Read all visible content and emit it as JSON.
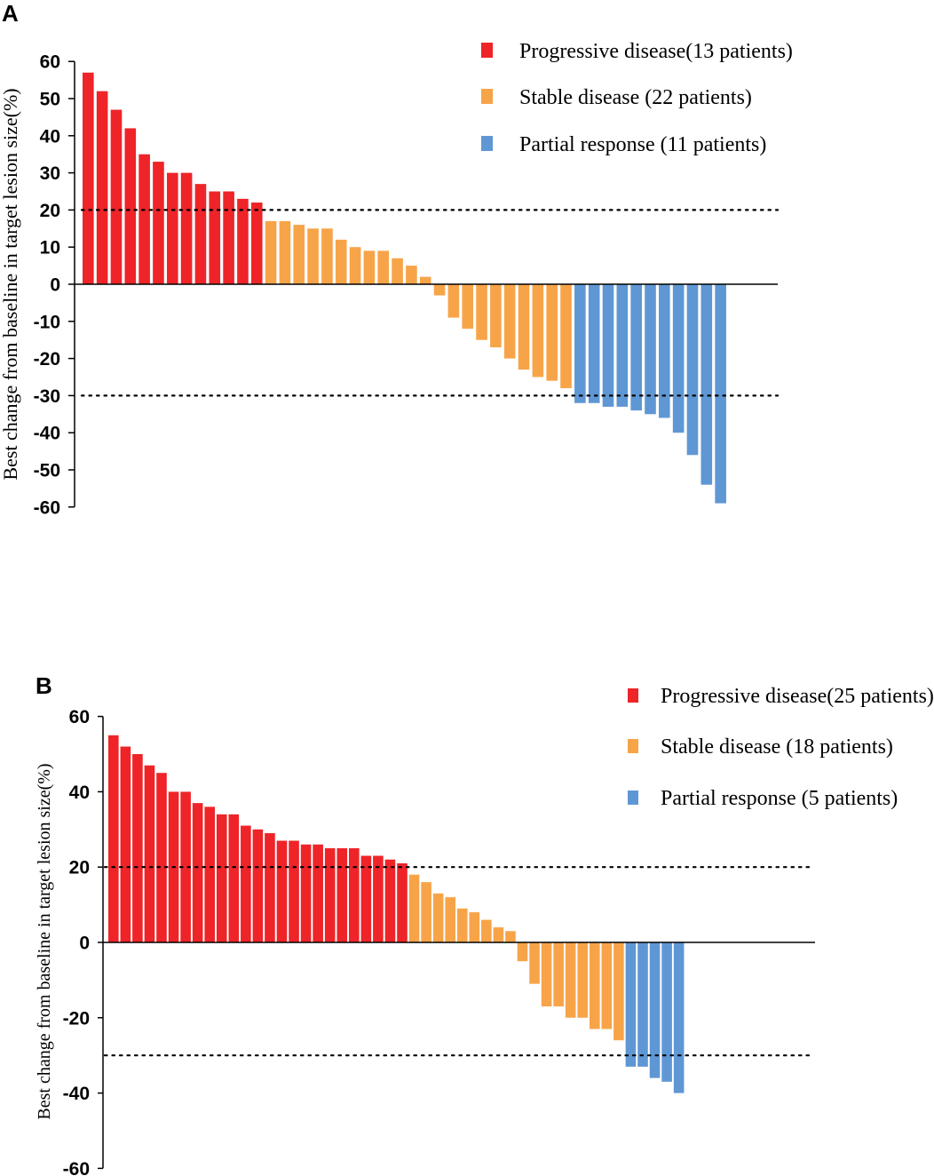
{
  "chart_data": [
    {
      "type": "bar",
      "panel": "A",
      "title": "",
      "xlabel": "",
      "ylabel": "Best change from baseline in target lesion size(%)",
      "ylim": [
        -60,
        60
      ],
      "yticks": [
        60,
        50,
        40,
        30,
        20,
        10,
        0,
        -10,
        -20,
        -30,
        -40,
        -50,
        -60
      ],
      "reference_lines": [
        20,
        -30
      ],
      "legend": [
        {
          "label": "Progressive disease(13 patients)",
          "color": "#ee2428"
        },
        {
          "label": "Stable disease (22 patients)",
          "color": "#f7a449"
        },
        {
          "label": "Partial response (11 patients)",
          "color": "#5f97d4"
        }
      ],
      "series": [
        {
          "name": "Progressive disease",
          "color": "#ee2428",
          "values": [
            57,
            52,
            47,
            42,
            35,
            33,
            30,
            30,
            27,
            25,
            25,
            23,
            22
          ]
        },
        {
          "name": "Stable disease",
          "color": "#f7a449",
          "values": [
            17,
            17,
            16,
            15,
            15,
            12,
            10,
            9,
            9,
            7,
            5,
            2,
            -3,
            -9,
            -12,
            -15,
            -17,
            -20,
            -23,
            -25,
            -26,
            -28
          ]
        },
        {
          "name": "Partial response",
          "color": "#5f97d4",
          "values": [
            -32,
            -32,
            -33,
            -33,
            -34,
            -35,
            -36,
            -40,
            -46,
            -54,
            -59
          ]
        }
      ]
    },
    {
      "type": "bar",
      "panel": "B",
      "title": "",
      "xlabel": "",
      "ylabel": "Best change from baseline in target lesion size(%)",
      "ylim": [
        -60,
        60
      ],
      "yticks": [
        60,
        40,
        20,
        0,
        -20,
        -40,
        -60
      ],
      "reference_lines": [
        20,
        -30
      ],
      "legend": [
        {
          "label": "Progressive disease(25 patients)",
          "color": "#ee2428"
        },
        {
          "label": "Stable disease (18 patients)",
          "color": "#f7a449"
        },
        {
          "label": "Partial response (5 patients)",
          "color": "#5f97d4"
        }
      ],
      "series": [
        {
          "name": "Progressive disease",
          "color": "#ee2428",
          "values": [
            55,
            52,
            50,
            47,
            45,
            40,
            40,
            37,
            36,
            34,
            34,
            31,
            30,
            29,
            27,
            27,
            26,
            26,
            25,
            25,
            25,
            23,
            23,
            22,
            21
          ]
        },
        {
          "name": "Stable disease",
          "color": "#f7a449",
          "values": [
            18,
            16,
            13,
            12,
            9,
            8,
            6,
            4,
            3,
            -5,
            -11,
            -17,
            -17,
            -20,
            -20,
            -23,
            -23,
            -26
          ]
        },
        {
          "name": "Partial response",
          "color": "#5f97d4",
          "values": [
            -33,
            -33,
            -36,
            -37,
            -40
          ]
        }
      ]
    }
  ]
}
